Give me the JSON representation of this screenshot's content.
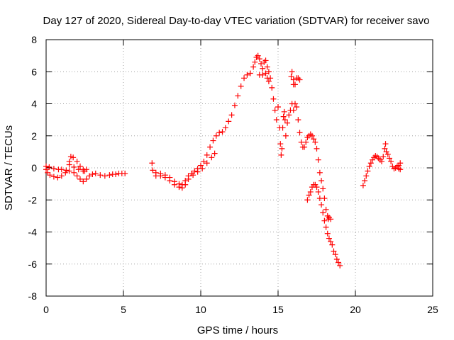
{
  "chart_data": {
    "type": "scatter",
    "title": "Day 127 of 2020, Sidereal Day-to-day VTEC variation (SDTVAR) for receiver savo",
    "xlabel": "GPS time / hours",
    "ylabel": "SDTVAR / TECUs",
    "xlim": [
      0,
      25
    ],
    "ylim": [
      -8,
      8
    ],
    "xticks": [
      0,
      5,
      10,
      15,
      20,
      25
    ],
    "yticks": [
      -8,
      -6,
      -4,
      -2,
      0,
      2,
      4,
      6,
      8
    ],
    "grid": true,
    "legend": "none",
    "marker": "+",
    "color": "#ff0000",
    "series": [
      {
        "points": [
          [
            0.0,
            -0.1
          ],
          [
            0.1,
            -0.3
          ],
          [
            0.25,
            -0.45
          ],
          [
            0.5,
            -0.55
          ],
          [
            0.75,
            -0.6
          ],
          [
            1.0,
            -0.5
          ],
          [
            1.25,
            -0.3
          ],
          [
            1.5,
            0.4
          ],
          [
            1.6,
            0.7
          ],
          [
            1.75,
            0.65
          ],
          [
            2.0,
            0.4
          ],
          [
            2.2,
            0.1
          ],
          [
            2.4,
            -0.2
          ],
          [
            2.5,
            -0.2
          ],
          [
            0.0,
            0.1
          ],
          [
            0.2,
            0.05
          ],
          [
            0.5,
            -0.05
          ],
          [
            0.8,
            -0.1
          ],
          [
            1.0,
            -0.1
          ],
          [
            1.3,
            -0.15
          ],
          [
            1.5,
            -0.2
          ],
          [
            1.8,
            -0.3
          ],
          [
            2.0,
            -0.5
          ],
          [
            2.2,
            -0.7
          ],
          [
            2.4,
            -0.85
          ],
          [
            2.6,
            -0.7
          ],
          [
            2.8,
            -0.5
          ],
          [
            3.0,
            -0.4
          ],
          [
            3.2,
            -0.35
          ],
          [
            3.5,
            -0.45
          ],
          [
            3.8,
            -0.5
          ],
          [
            4.1,
            -0.45
          ],
          [
            4.3,
            -0.4
          ],
          [
            4.5,
            -0.4
          ],
          [
            4.7,
            -0.35
          ],
          [
            4.9,
            -0.35
          ],
          [
            5.1,
            -0.35
          ],
          [
            1.5,
            0.2
          ],
          [
            1.8,
            0.05
          ],
          [
            2.1,
            -0.1
          ],
          [
            2.4,
            -0.1
          ],
          [
            2.6,
            -0.1
          ],
          [
            6.85,
            0.3
          ],
          [
            6.9,
            -0.15
          ],
          [
            7.1,
            -0.3
          ],
          [
            7.4,
            -0.35
          ],
          [
            7.7,
            -0.45
          ],
          [
            8.0,
            -0.6
          ],
          [
            8.3,
            -0.85
          ],
          [
            8.6,
            -1.0
          ],
          [
            8.8,
            -1.05
          ],
          [
            9.0,
            -0.8
          ],
          [
            9.2,
            -0.5
          ],
          [
            9.4,
            -0.35
          ],
          [
            9.6,
            -0.2
          ],
          [
            9.8,
            -0.05
          ],
          [
            10.0,
            0.15
          ],
          [
            10.2,
            0.4
          ],
          [
            10.4,
            0.8
          ],
          [
            10.6,
            1.3
          ],
          [
            10.8,
            1.7
          ],
          [
            11.0,
            2.0
          ],
          [
            11.2,
            2.2
          ],
          [
            11.4,
            2.25
          ],
          [
            11.6,
            2.5
          ],
          [
            11.8,
            2.9
          ],
          [
            12.0,
            3.3
          ],
          [
            12.2,
            3.9
          ],
          [
            12.4,
            4.5
          ],
          [
            12.6,
            5.1
          ],
          [
            12.8,
            5.6
          ],
          [
            13.0,
            5.8
          ],
          [
            13.2,
            5.9
          ],
          [
            13.4,
            6.3
          ],
          [
            13.5,
            6.6
          ],
          [
            13.6,
            6.9
          ],
          [
            13.7,
            7.0
          ],
          [
            13.8,
            6.8
          ],
          [
            13.9,
            6.5
          ],
          [
            14.0,
            6.2
          ],
          [
            14.1,
            6.6
          ],
          [
            14.2,
            6.7
          ],
          [
            14.3,
            6.3
          ],
          [
            14.4,
            6.0
          ],
          [
            14.5,
            5.6
          ],
          [
            14.6,
            5.0
          ],
          [
            14.7,
            4.3
          ],
          [
            14.8,
            3.6
          ],
          [
            14.9,
            3.0
          ],
          [
            7.1,
            -0.5
          ],
          [
            7.4,
            -0.5
          ],
          [
            7.7,
            -0.6
          ],
          [
            8.0,
            -0.8
          ],
          [
            8.3,
            -1.05
          ],
          [
            8.6,
            -1.2
          ],
          [
            8.8,
            -1.25
          ],
          [
            9.0,
            -1.05
          ],
          [
            9.2,
            -0.7
          ],
          [
            9.5,
            -0.45
          ],
          [
            9.8,
            -0.25
          ],
          [
            10.1,
            -0.05
          ],
          [
            10.4,
            0.3
          ],
          [
            10.7,
            0.65
          ],
          [
            10.9,
            0.9
          ],
          [
            13.8,
            5.8
          ],
          [
            14.0,
            5.8
          ],
          [
            14.2,
            5.9
          ],
          [
            14.3,
            5.6
          ],
          [
            14.4,
            5.4
          ],
          [
            15.0,
            3.8
          ],
          [
            15.1,
            2.5
          ],
          [
            15.15,
            1.5
          ],
          [
            15.2,
            0.8
          ],
          [
            15.25,
            1.2
          ],
          [
            15.3,
            2.5
          ],
          [
            15.35,
            3.2
          ],
          [
            15.4,
            3.5
          ],
          [
            15.45,
            3.0
          ],
          [
            15.5,
            2.0
          ],
          [
            15.6,
            2.8
          ],
          [
            15.7,
            3.3
          ],
          [
            15.8,
            3.6
          ],
          [
            15.9,
            4.0
          ],
          [
            16.0,
            5.2
          ],
          [
            15.85,
            5.7
          ],
          [
            15.9,
            6.0
          ],
          [
            16.0,
            5.5
          ],
          [
            16.1,
            5.2
          ],
          [
            16.2,
            5.6
          ],
          [
            16.3,
            5.6
          ],
          [
            16.4,
            5.5
          ],
          [
            16.0,
            3.6
          ],
          [
            16.1,
            4.0
          ],
          [
            16.2,
            3.8
          ],
          [
            16.3,
            3.0
          ],
          [
            16.4,
            2.2
          ],
          [
            16.5,
            1.6
          ],
          [
            16.6,
            1.3
          ],
          [
            16.7,
            1.3
          ],
          [
            16.8,
            1.6
          ],
          [
            16.9,
            1.9
          ],
          [
            17.0,
            2.0
          ],
          [
            17.1,
            2.1
          ],
          [
            17.2,
            2.0
          ],
          [
            17.3,
            1.8
          ],
          [
            17.4,
            1.6
          ],
          [
            17.5,
            1.2
          ],
          [
            17.6,
            0.5
          ],
          [
            17.7,
            -0.3
          ],
          [
            17.8,
            -0.8
          ],
          [
            17.9,
            -1.3
          ],
          [
            18.0,
            -1.9
          ],
          [
            18.1,
            -2.6
          ],
          [
            18.2,
            -3.0
          ],
          [
            18.25,
            -3.2
          ],
          [
            18.3,
            -3.1
          ],
          [
            18.4,
            -3.2
          ],
          [
            16.9,
            -2.0
          ],
          [
            17.0,
            -1.7
          ],
          [
            17.1,
            -1.5
          ],
          [
            17.2,
            -1.2
          ],
          [
            17.3,
            -1.05
          ],
          [
            17.4,
            -1.05
          ],
          [
            17.5,
            -1.2
          ],
          [
            17.6,
            -1.5
          ],
          [
            17.7,
            -1.9
          ],
          [
            17.8,
            -2.3
          ],
          [
            17.9,
            -2.8
          ],
          [
            18.0,
            -3.3
          ],
          [
            18.1,
            -3.7
          ],
          [
            18.2,
            -4.1
          ],
          [
            18.3,
            -4.4
          ],
          [
            18.4,
            -4.6
          ],
          [
            18.5,
            -4.8
          ],
          [
            18.6,
            -5.2
          ],
          [
            18.7,
            -5.4
          ],
          [
            18.8,
            -5.7
          ],
          [
            18.9,
            -5.9
          ],
          [
            19.0,
            -6.1
          ],
          [
            20.5,
            -1.1
          ],
          [
            20.6,
            -0.8
          ],
          [
            20.7,
            -0.5
          ],
          [
            20.8,
            -0.2
          ],
          [
            20.9,
            0.1
          ],
          [
            21.0,
            0.3
          ],
          [
            21.1,
            0.5
          ],
          [
            21.2,
            0.65
          ],
          [
            21.3,
            0.75
          ],
          [
            21.4,
            0.7
          ],
          [
            21.5,
            0.6
          ],
          [
            21.6,
            0.5
          ],
          [
            21.7,
            0.4
          ],
          [
            21.8,
            0.7
          ],
          [
            21.9,
            1.2
          ],
          [
            21.95,
            1.5
          ],
          [
            22.0,
            1.0
          ],
          [
            22.1,
            0.85
          ],
          [
            22.2,
            0.6
          ],
          [
            22.3,
            0.4
          ],
          [
            22.4,
            0.1
          ],
          [
            22.5,
            -0.05
          ],
          [
            22.6,
            0.0
          ],
          [
            22.7,
            0.1
          ],
          [
            22.8,
            0.15
          ],
          [
            22.9,
            0.3
          ],
          [
            22.9,
            -0.1
          ],
          [
            22.8,
            -0.05
          ]
        ]
      }
    ]
  }
}
